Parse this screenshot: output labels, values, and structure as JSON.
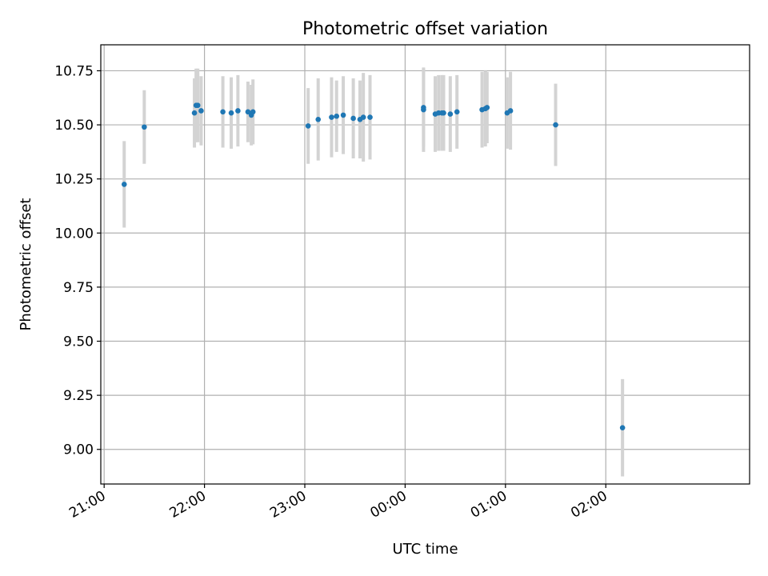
{
  "chart_data": {
    "type": "scatter",
    "title": "Photometric offset variation",
    "xlabel": "UTC time",
    "ylabel": "Photometric offset",
    "x_axis": {
      "kind": "time",
      "ticks": [
        "21:00",
        "22:00",
        "23:00",
        "00:00",
        "01:00",
        "02:00"
      ],
      "xlim": [
        "20:58",
        "03:26"
      ]
    },
    "y_axis": {
      "ticks": [
        "9.00",
        "9.25",
        "9.50",
        "9.75",
        "10.00",
        "10.25",
        "10.50",
        "10.75"
      ],
      "ylim": [
        8.84,
        10.87
      ]
    },
    "grid": true,
    "series": [
      {
        "marker_color": "#1f77b4",
        "errorbar_color": "#d3d3d3",
        "points": [
          {
            "t": "21:12",
            "y": 10.225,
            "err": 0.2
          },
          {
            "t": "21:24",
            "y": 10.49,
            "err": 0.17
          },
          {
            "t": "21:54",
            "y": 10.555,
            "err": 0.16
          },
          {
            "t": "21:55",
            "y": 10.59,
            "err": 0.17
          },
          {
            "t": "21:56",
            "y": 10.59,
            "err": 0.17
          },
          {
            "t": "21:58",
            "y": 10.565,
            "err": 0.16
          },
          {
            "t": "22:11",
            "y": 10.56,
            "err": 0.165
          },
          {
            "t": "22:16",
            "y": 10.555,
            "err": 0.165
          },
          {
            "t": "22:20",
            "y": 10.565,
            "err": 0.165
          },
          {
            "t": "22:26",
            "y": 10.56,
            "err": 0.14
          },
          {
            "t": "22:28",
            "y": 10.545,
            "err": 0.14
          },
          {
            "t": "22:29",
            "y": 10.56,
            "err": 0.15
          },
          {
            "t": "23:02",
            "y": 10.495,
            "err": 0.175
          },
          {
            "t": "23:08",
            "y": 10.525,
            "err": 0.19
          },
          {
            "t": "23:16",
            "y": 10.535,
            "err": 0.185
          },
          {
            "t": "23:19",
            "y": 10.54,
            "err": 0.165
          },
          {
            "t": "23:23",
            "y": 10.545,
            "err": 0.18
          },
          {
            "t": "23:29",
            "y": 10.53,
            "err": 0.185
          },
          {
            "t": "23:33",
            "y": 10.525,
            "err": 0.18
          },
          {
            "t": "23:35",
            "y": 10.535,
            "err": 0.205
          },
          {
            "t": "23:39",
            "y": 10.535,
            "err": 0.195
          },
          {
            "t": "00:11",
            "y": 10.57,
            "err": 0.195
          },
          {
            "t": "00:11",
            "y": 10.58,
            "err": 0.18
          },
          {
            "t": "00:18",
            "y": 10.55,
            "err": 0.175
          },
          {
            "t": "00:20",
            "y": 10.555,
            "err": 0.175
          },
          {
            "t": "00:22",
            "y": 10.555,
            "err": 0.175
          },
          {
            "t": "00:23",
            "y": 10.555,
            "err": 0.175
          },
          {
            "t": "00:27",
            "y": 10.55,
            "err": 0.175
          },
          {
            "t": "00:31",
            "y": 10.56,
            "err": 0.17
          },
          {
            "t": "00:46",
            "y": 10.57,
            "err": 0.175
          },
          {
            "t": "00:48",
            "y": 10.575,
            "err": 0.175
          },
          {
            "t": "00:49",
            "y": 10.58,
            "err": 0.165
          },
          {
            "t": "01:01",
            "y": 10.555,
            "err": 0.165
          },
          {
            "t": "01:03",
            "y": 10.565,
            "err": 0.18
          },
          {
            "t": "01:30",
            "y": 10.5,
            "err": 0.19
          },
          {
            "t": "02:10",
            "y": 9.1,
            "err": 0.225
          }
        ]
      }
    ]
  }
}
